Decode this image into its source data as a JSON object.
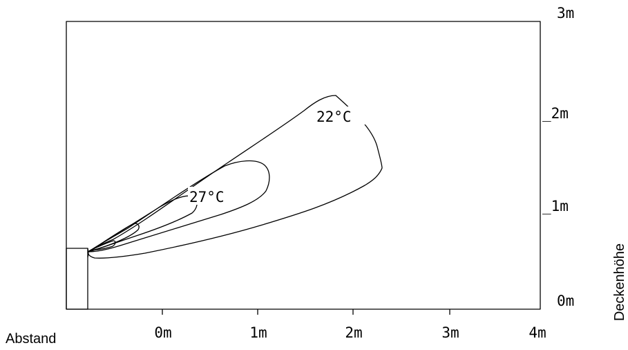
{
  "x_axis": {
    "title": "Abstand",
    "ticks": [
      "0m",
      "1m",
      "2m",
      "3m",
      "4m"
    ]
  },
  "y_axis": {
    "title": "Deckenhöhe",
    "ticks": [
      "0m",
      "_1m",
      "_2m",
      "3m"
    ]
  },
  "contours": [
    {
      "label": "22°C"
    },
    {
      "label": "27°C"
    }
  ],
  "colors": {
    "line": "#000000",
    "background": "#ffffff"
  }
}
